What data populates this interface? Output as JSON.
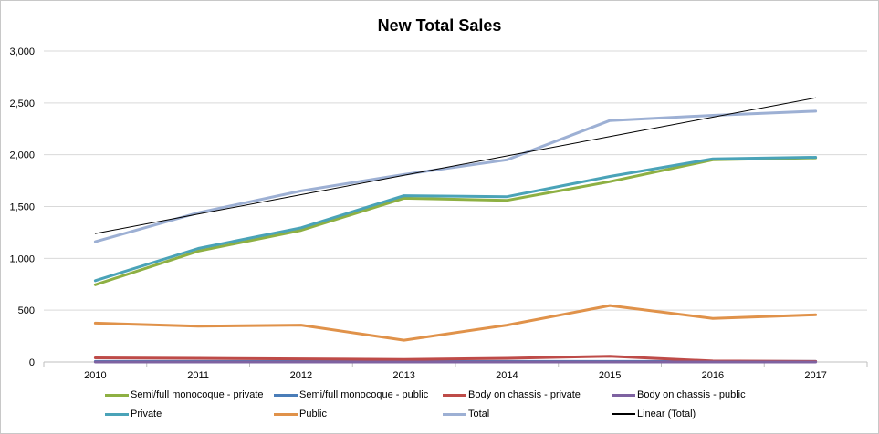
{
  "chart_data": {
    "type": "line",
    "title": "New Total Sales",
    "xlabel": "",
    "ylabel": "",
    "x": [
      "2010",
      "2011",
      "2012",
      "2013",
      "2014",
      "2015",
      "2016",
      "2017"
    ],
    "ylim": [
      0,
      3000
    ],
    "yticks": [
      0,
      500,
      1000,
      1500,
      2000,
      2500,
      3000
    ],
    "ytick_labels": [
      "0",
      "500",
      "1,000",
      "1,500",
      "2,000",
      "2,500",
      "3,000"
    ],
    "grid": true,
    "legend_position": "bottom",
    "series": [
      {
        "name": "Semi/full monocoque - private",
        "color": "#8eb043",
        "values": [
          745,
          1070,
          1270,
          1580,
          1560,
          1740,
          1950,
          1970
        ]
      },
      {
        "name": "Semi/full monocoque - public",
        "color": "#4a7db8",
        "values": [
          5,
          5,
          5,
          5,
          5,
          5,
          5,
          5
        ]
      },
      {
        "name": "Body on chassis - private",
        "color": "#be4b48",
        "values": [
          40,
          35,
          30,
          25,
          35,
          55,
          10,
          5
        ]
      },
      {
        "name": "Body on chassis - public",
        "color": "#7e62a1",
        "values": [
          0,
          0,
          0,
          0,
          0,
          0,
          0,
          0
        ]
      },
      {
        "name": "Private",
        "color": "#4aa3b8",
        "values": [
          785,
          1095,
          1295,
          1605,
          1595,
          1790,
          1960,
          1975
        ]
      },
      {
        "name": "Public",
        "color": "#e0924a",
        "values": [
          375,
          345,
          355,
          210,
          355,
          545,
          420,
          455
        ]
      },
      {
        "name": "Total",
        "color": "#9db0d4",
        "values": [
          1160,
          1440,
          1650,
          1810,
          1950,
          2330,
          2380,
          2420
        ]
      },
      {
        "name": "Linear (Total)",
        "color": "#000000",
        "trendline": true,
        "values": [
          1240,
          1427,
          1614,
          1801,
          1988,
          2175,
          2362,
          2549
        ]
      }
    ]
  }
}
